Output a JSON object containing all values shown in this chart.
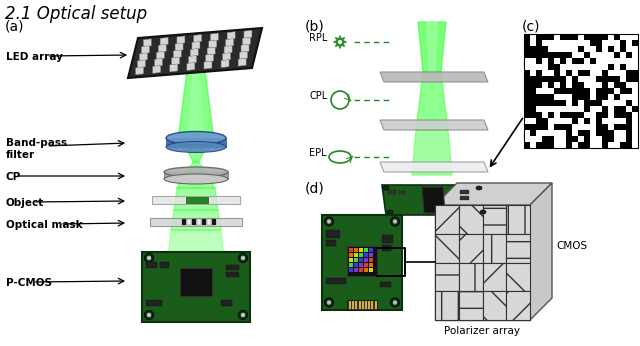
{
  "title": "2.1 Optical setup",
  "bg_color": "#ffffff",
  "green_light": "#44ff44",
  "green_mid": "#228822",
  "pcb_color": "#1a5c1a",
  "bpf_color": "#6699cc",
  "qr_seed": 42,
  "panel_labels": [
    "(a)",
    "(b)",
    "(c)",
    "(d)"
  ],
  "labels_a": [
    "LED array",
    "Band-pass\nfilter",
    "CP",
    "Object",
    "Optical mask",
    "P-CMOS"
  ],
  "labels_b": [
    "RPL",
    "CPL",
    "EPL"
  ],
  "labels_d": [
    "Polarizer array",
    "CMOS"
  ]
}
